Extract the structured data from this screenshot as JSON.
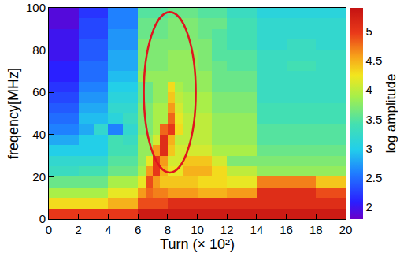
{
  "chart_data": {
    "type": "heatmap",
    "x_label": "Turn (× 10²)",
    "y_label": "freqency[MHz]",
    "colorbar_label": "log amplitude",
    "xlim": [
      0,
      20
    ],
    "ylim": [
      0,
      100
    ],
    "xticks": [
      0,
      2,
      4,
      6,
      8,
      10,
      12,
      14,
      16,
      18,
      20
    ],
    "yticks": [
      0,
      20,
      40,
      60,
      80,
      100
    ],
    "zlim": [
      1.8,
      5.4
    ],
    "zticks": [
      2,
      2.5,
      3,
      3.5,
      4,
      4.5,
      5
    ],
    "x": [
      0.25,
      0.75,
      1.25,
      1.75,
      2.25,
      2.75,
      3.25,
      3.75,
      4.25,
      4.75,
      5.25,
      5.75,
      6.25,
      6.75,
      7.25,
      7.75,
      8.25,
      8.75,
      9.25,
      9.75,
      10.25,
      10.75,
      11.25,
      11.75,
      12.25,
      12.75,
      13.25,
      13.75,
      14.25,
      14.75,
      15.25,
      15.75,
      16.25,
      16.75,
      17.25,
      17.75,
      18.25,
      18.75,
      19.25,
      19.75
    ],
    "y": [
      2.5,
      7.5,
      12.5,
      17.5,
      22.5,
      27.5,
      32.5,
      37.5,
      42.5,
      47.5,
      52.5,
      57.5,
      62.5,
      67.5,
      72.5,
      77.5,
      82.5,
      87.5,
      92.5,
      97.5
    ],
    "z": [
      [
        5.0,
        5.0,
        5.0,
        5.0,
        5.0,
        5.0,
        5.0,
        5.0,
        5.0,
        5.0,
        5.0,
        5.0,
        5.3,
        5.3,
        5.3,
        5.3,
        5.3,
        5.3,
        5.3,
        5.3,
        5.3,
        5.3,
        5.3,
        5.3,
        5.3,
        5.3,
        5.3,
        5.3,
        5.3,
        5.3,
        5.3,
        5.3,
        5.3,
        5.3,
        5.3,
        5.3,
        5.3,
        5.3,
        5.3,
        5.3
      ],
      [
        4.3,
        4.3,
        4.3,
        4.3,
        4.3,
        4.3,
        4.3,
        4.3,
        4.5,
        4.5,
        4.5,
        4.5,
        4.9,
        4.9,
        4.9,
        4.9,
        5.1,
        5.1,
        5.1,
        5.1,
        5.1,
        5.1,
        5.1,
        5.1,
        5.1,
        5.1,
        5.1,
        5.1,
        5.1,
        5.1,
        5.1,
        5.1,
        5.1,
        5.1,
        5.1,
        5.1,
        5.1,
        5.1,
        5.1,
        5.1
      ],
      [
        3.9,
        3.9,
        3.9,
        3.9,
        3.9,
        3.9,
        3.9,
        3.9,
        4.2,
        4.2,
        4.2,
        4.2,
        4.6,
        4.8,
        4.7,
        4.7,
        4.6,
        4.6,
        4.6,
        4.6,
        4.5,
        4.5,
        4.5,
        4.5,
        4.6,
        4.6,
        4.6,
        4.6,
        5.1,
        5.1,
        5.1,
        5.1,
        5.1,
        5.1,
        5.1,
        5.1,
        4.9,
        4.9,
        4.9,
        4.9
      ],
      [
        3.6,
        3.6,
        3.6,
        3.6,
        3.6,
        3.6,
        3.6,
        3.6,
        3.9,
        3.9,
        3.9,
        3.9,
        4.2,
        4.9,
        4.6,
        4.4,
        4.4,
        4.4,
        4.4,
        4.4,
        4.3,
        4.3,
        4.3,
        4.3,
        4.2,
        4.2,
        4.2,
        4.2,
        4.7,
        4.7,
        4.7,
        4.7,
        4.7,
        4.7,
        4.7,
        4.7,
        4.4,
        4.4,
        4.4,
        4.4
      ],
      [
        3.3,
        3.3,
        3.3,
        3.3,
        3.4,
        3.4,
        3.4,
        3.4,
        3.6,
        3.6,
        3.6,
        3.6,
        3.9,
        4.6,
        5.0,
        4.5,
        4.2,
        4.2,
        4.5,
        4.5,
        4.5,
        4.5,
        4.3,
        4.3,
        4.0,
        4.0,
        4.0,
        4.0,
        3.8,
        3.8,
        3.8,
        3.8,
        3.8,
        3.8,
        3.8,
        3.8,
        3.8,
        3.8,
        3.8,
        3.8
      ],
      [
        3.2,
        3.2,
        3.2,
        3.2,
        3.2,
        3.2,
        3.2,
        3.2,
        3.5,
        3.5,
        3.5,
        3.5,
        3.8,
        4.2,
        5.0,
        4.6,
        4.1,
        4.1,
        4.4,
        4.4,
        4.4,
        4.4,
        4.1,
        4.1,
        3.7,
        3.7,
        3.7,
        3.7,
        3.7,
        3.7,
        3.7,
        3.7,
        3.7,
        3.7,
        3.7,
        3.7,
        3.7,
        3.7,
        3.7,
        3.7
      ],
      [
        3.0,
        3.0,
        3.0,
        3.0,
        3.0,
        3.0,
        3.0,
        3.0,
        3.4,
        3.4,
        3.4,
        3.4,
        3.8,
        3.8,
        4.6,
        5.1,
        4.4,
        4.1,
        4.1,
        4.1,
        4.1,
        4.1,
        3.9,
        3.9,
        3.9,
        3.9,
        3.9,
        3.9,
        3.6,
        3.6,
        3.6,
        3.6,
        3.6,
        3.6,
        3.6,
        3.6,
        3.6,
        3.6,
        3.6,
        3.6
      ],
      [
        2.8,
        2.8,
        2.8,
        2.8,
        3.0,
        3.0,
        3.0,
        3.0,
        3.4,
        3.4,
        3.3,
        3.3,
        3.8,
        3.8,
        4.1,
        5.1,
        4.5,
        4.0,
        4.0,
        4.0,
        4.0,
        4.0,
        3.8,
        3.8,
        3.8,
        3.8,
        3.8,
        3.8,
        3.5,
        3.5,
        3.5,
        3.5,
        3.5,
        3.5,
        3.5,
        3.5,
        3.5,
        3.5,
        3.5,
        3.5
      ],
      [
        2.6,
        2.6,
        2.6,
        2.6,
        2.8,
        2.8,
        3.2,
        3.2,
        2.6,
        2.6,
        3.2,
        3.2,
        3.7,
        3.7,
        3.9,
        4.8,
        5.0,
        4.3,
        4.0,
        4.0,
        4.0,
        4.0,
        3.8,
        3.8,
        3.8,
        3.8,
        3.8,
        3.8,
        3.5,
        3.5,
        3.5,
        3.5,
        3.5,
        3.5,
        3.5,
        3.5,
        3.5,
        3.5,
        3.5,
        3.5
      ],
      [
        2.5,
        2.5,
        2.5,
        2.5,
        2.9,
        2.9,
        2.9,
        2.9,
        3.1,
        3.1,
        3.3,
        3.3,
        3.7,
        3.7,
        3.9,
        3.9,
        4.8,
        4.2,
        4.0,
        4.0,
        4.0,
        4.0,
        3.8,
        3.8,
        3.8,
        3.8,
        3.8,
        3.8,
        3.4,
        3.4,
        3.4,
        3.4,
        3.4,
        3.4,
        3.4,
        3.4,
        3.4,
        3.4,
        3.4,
        3.4
      ],
      [
        2.4,
        2.4,
        2.4,
        2.4,
        2.8,
        2.8,
        2.8,
        2.8,
        3.2,
        3.2,
        3.2,
        3.2,
        3.7,
        3.7,
        3.9,
        3.9,
        4.6,
        4.1,
        3.9,
        3.9,
        3.9,
        3.9,
        3.7,
        3.7,
        3.7,
        3.7,
        3.7,
        3.7,
        3.4,
        3.4,
        3.4,
        3.4,
        3.4,
        3.4,
        3.4,
        3.4,
        3.4,
        3.4,
        3.4,
        3.4
      ],
      [
        2.3,
        2.3,
        2.3,
        2.3,
        2.7,
        2.7,
        2.7,
        2.7,
        3.1,
        3.1,
        3.1,
        3.1,
        3.6,
        3.6,
        3.8,
        3.8,
        4.4,
        4.0,
        3.9,
        3.9,
        3.9,
        3.9,
        3.7,
        3.7,
        3.7,
        3.7,
        3.7,
        3.7,
        3.3,
        3.3,
        3.3,
        3.3,
        3.3,
        3.3,
        3.3,
        3.3,
        3.3,
        3.3,
        3.3,
        3.3
      ],
      [
        2.2,
        2.2,
        2.2,
        2.2,
        2.6,
        2.6,
        2.6,
        2.6,
        3.0,
        3.0,
        3.0,
        3.0,
        3.6,
        3.6,
        3.8,
        3.8,
        4.3,
        3.9,
        3.8,
        3.8,
        3.8,
        3.8,
        3.6,
        3.6,
        3.6,
        3.6,
        3.6,
        3.6,
        3.3,
        3.3,
        3.3,
        3.3,
        3.3,
        3.3,
        3.3,
        3.3,
        3.3,
        3.3,
        3.3,
        3.3
      ],
      [
        2.1,
        2.1,
        2.1,
        2.1,
        2.5,
        2.5,
        2.5,
        2.5,
        2.9,
        2.9,
        2.9,
        2.9,
        3.8,
        3.8,
        3.8,
        3.8,
        3.8,
        3.8,
        3.8,
        3.8,
        3.8,
        3.8,
        3.6,
        3.6,
        3.6,
        3.6,
        3.6,
        3.6,
        3.3,
        3.3,
        3.3,
        3.3,
        3.3,
        3.3,
        3.3,
        3.3,
        3.3,
        3.3,
        3.3,
        3.3
      ],
      [
        2.1,
        2.1,
        2.1,
        2.1,
        2.5,
        2.5,
        2.5,
        2.5,
        2.8,
        2.8,
        2.8,
        2.8,
        3.7,
        3.7,
        3.7,
        3.7,
        3.8,
        3.8,
        3.8,
        3.8,
        3.7,
        3.7,
        3.6,
        3.6,
        3.5,
        3.5,
        3.5,
        3.5,
        3.3,
        3.3,
        3.3,
        3.3,
        3.4,
        3.4,
        3.4,
        3.4,
        3.3,
        3.3,
        3.3,
        3.3
      ],
      [
        2.0,
        2.0,
        2.0,
        2.0,
        2.4,
        2.4,
        2.4,
        2.4,
        2.8,
        2.8,
        2.8,
        2.8,
        3.7,
        3.7,
        3.7,
        3.7,
        3.8,
        3.8,
        3.8,
        3.8,
        3.7,
        3.7,
        3.5,
        3.5,
        3.5,
        3.5,
        3.5,
        3.5,
        3.3,
        3.3,
        3.3,
        3.3,
        3.3,
        3.3,
        3.3,
        3.3,
        3.3,
        3.3,
        3.3,
        3.3
      ],
      [
        2.0,
        2.0,
        2.0,
        2.0,
        2.4,
        2.4,
        2.4,
        2.4,
        2.7,
        2.7,
        2.7,
        2.7,
        3.7,
        3.7,
        3.7,
        3.7,
        3.7,
        3.7,
        3.7,
        3.7,
        3.7,
        3.7,
        3.5,
        3.5,
        3.4,
        3.4,
        3.4,
        3.4,
        3.2,
        3.2,
        3.2,
        3.2,
        3.3,
        3.3,
        3.3,
        3.3,
        3.2,
        3.2,
        3.2,
        3.2
      ],
      [
        2.0,
        2.0,
        2.0,
        2.0,
        2.3,
        2.3,
        2.3,
        2.3,
        2.7,
        2.7,
        2.7,
        2.7,
        3.6,
        3.6,
        3.6,
        3.6,
        3.7,
        3.7,
        3.7,
        3.7,
        3.6,
        3.6,
        3.5,
        3.5,
        3.4,
        3.4,
        3.4,
        3.4,
        3.2,
        3.2,
        3.2,
        3.2,
        3.2,
        3.2,
        3.2,
        3.2,
        3.2,
        3.2,
        3.2,
        3.2
      ],
      [
        1.9,
        1.9,
        1.9,
        1.9,
        2.3,
        2.3,
        2.3,
        2.3,
        2.6,
        2.6,
        2.6,
        2.6,
        3.6,
        3.6,
        3.6,
        3.6,
        3.7,
        3.7,
        3.7,
        3.7,
        3.6,
        3.6,
        3.6,
        3.6,
        3.4,
        3.4,
        3.4,
        3.4,
        3.2,
        3.2,
        3.2,
        3.2,
        3.2,
        3.2,
        3.2,
        3.2,
        3.2,
        3.2,
        3.2,
        3.2
      ],
      [
        1.9,
        1.9,
        1.9,
        1.9,
        2.2,
        2.2,
        2.2,
        2.2,
        2.6,
        2.6,
        2.6,
        2.6,
        3.5,
        3.5,
        3.5,
        3.5,
        3.6,
        3.6,
        3.6,
        3.6,
        3.5,
        3.5,
        3.5,
        3.5,
        3.3,
        3.3,
        3.3,
        3.3,
        3.1,
        3.1,
        3.1,
        3.1,
        3.1,
        3.1,
        3.1,
        3.1,
        3.1,
        3.1,
        3.1,
        3.1
      ]
    ]
  }
}
